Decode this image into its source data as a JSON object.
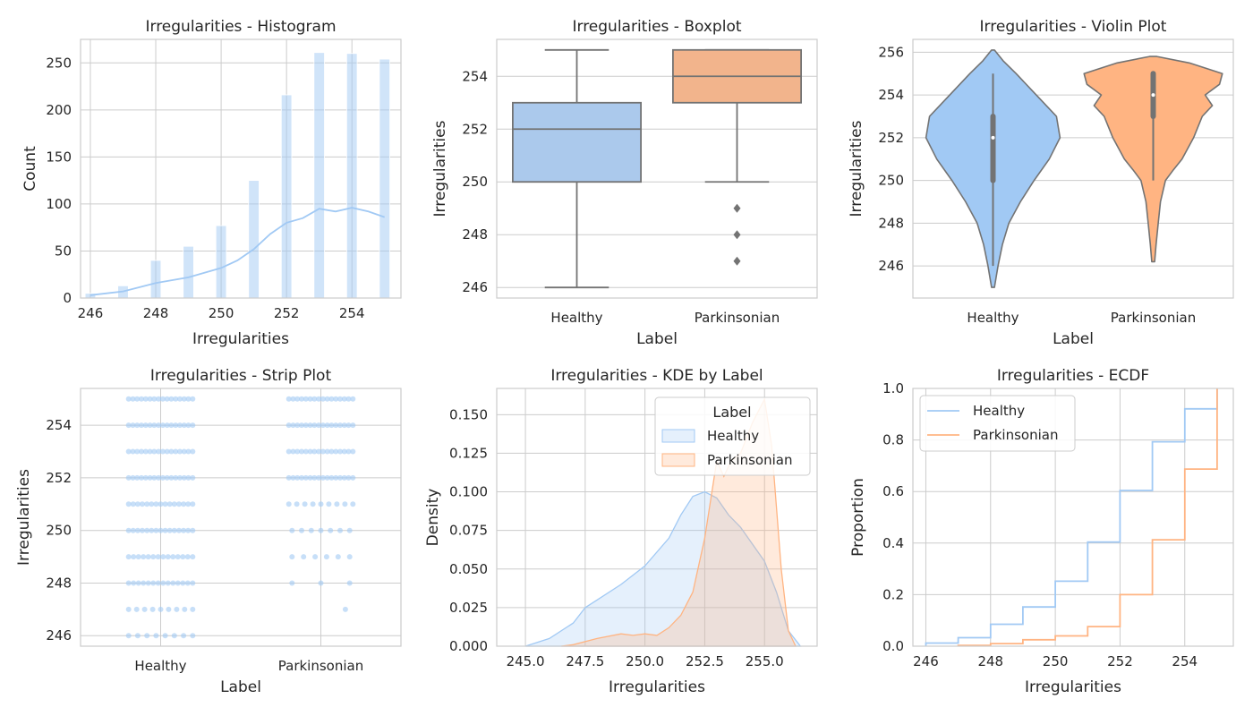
{
  "colors": {
    "healthy": "#a1c9f4",
    "parkinsonian": "#ffb482",
    "healthy_box": "#abc9ec",
    "parkinsonian_box": "#f2b48c",
    "line_gray": "#737373"
  },
  "chart_data": [
    {
      "type": "bar",
      "title": "Irregularities - Histogram",
      "xlabel": "Irregularities",
      "ylabel": "Count",
      "x": [
        246,
        247,
        248,
        249,
        250,
        251,
        252,
        253,
        254,
        255
      ],
      "values": [
        5,
        13,
        40,
        55,
        77,
        125,
        216,
        261,
        260,
        254
      ],
      "kde_x": [
        246,
        247,
        248,
        249,
        250,
        250.5,
        251,
        251.5,
        252,
        252.5,
        253,
        253.5,
        254,
        254.5,
        255
      ],
      "kde_y": [
        3,
        7,
        16,
        22,
        32,
        40,
        52,
        68,
        80,
        85,
        95,
        92,
        96,
        92,
        86
      ],
      "xticks": [
        "246",
        "248",
        "250",
        "252",
        "254"
      ],
      "yticks": [
        "0",
        "50",
        "100",
        "150",
        "200",
        "250"
      ],
      "xlim": [
        245.7,
        255.5
      ],
      "ylim": [
        0,
        275
      ],
      "grid": true
    },
    {
      "type": "box",
      "title": "Irregularities - Boxplot",
      "xlabel": "Label",
      "ylabel": "Irregularities",
      "categories": [
        "Healthy",
        "Parkinsonian"
      ],
      "boxes": [
        {
          "whislo": 246,
          "q1": 250,
          "med": 252,
          "q3": 253,
          "whishi": 255,
          "fliers": []
        },
        {
          "whislo": 250,
          "q1": 253,
          "med": 254,
          "q3": 255,
          "whishi": 255,
          "fliers": [
            249,
            248,
            247
          ]
        }
      ],
      "yticks": [
        "246",
        "248",
        "250",
        "252",
        "254"
      ],
      "ylim": [
        245.6,
        255.4
      ],
      "grid": true
    },
    {
      "type": "violin",
      "title": "Irregularities - Violin Plot",
      "xlabel": "Label",
      "ylabel": "Irregularities",
      "categories": [
        "Healthy",
        "Parkinsonian"
      ],
      "violins": [
        {
          "y": [
            245,
            246,
            247,
            248,
            249,
            250,
            251,
            252,
            253,
            254,
            255,
            255.6,
            256.1
          ],
          "width": [
            0.02,
            0.07,
            0.13,
            0.22,
            0.38,
            0.57,
            0.78,
            0.93,
            0.88,
            0.6,
            0.32,
            0.14,
            0.02
          ],
          "q1": 250,
          "med": 252,
          "q3": 253,
          "whislo": 246,
          "whishi": 255
        },
        {
          "y": [
            246.2,
            247,
            248,
            249,
            250,
            250.5,
            251,
            252,
            253,
            253.5,
            254,
            254.5,
            255,
            255.5,
            255.8
          ],
          "width": [
            0.02,
            0.04,
            0.07,
            0.1,
            0.17,
            0.28,
            0.4,
            0.56,
            0.68,
            0.82,
            0.72,
            0.92,
            0.96,
            0.5,
            0.05
          ],
          "q1": 253,
          "med": 254,
          "q3": 255,
          "whislo": 250,
          "whishi": 255
        }
      ],
      "yticks": [
        "246",
        "248",
        "250",
        "252",
        "254",
        "256"
      ],
      "ylim": [
        244.5,
        256.6
      ],
      "grid": true
    },
    {
      "type": "scatter",
      "title": "Irregularities - Strip Plot",
      "xlabel": "Label",
      "ylabel": "Irregularities",
      "categories": [
        "Healthy",
        "Parkinsonian"
      ],
      "strips": [
        {
          "values": [
            246,
            247,
            248,
            249,
            250,
            251,
            252,
            253,
            254,
            255
          ],
          "counts": [
            8,
            9,
            14,
            14,
            15,
            15,
            16,
            16,
            16,
            16
          ]
        },
        {
          "values": [
            247,
            248,
            249,
            250,
            251,
            252,
            253,
            254,
            255
          ],
          "counts": [
            1,
            3,
            6,
            7,
            9,
            16,
            16,
            16,
            16
          ]
        }
      ],
      "yticks": [
        "246",
        "248",
        "250",
        "252",
        "254"
      ],
      "ylim": [
        245.6,
        255.4
      ],
      "grid": true
    },
    {
      "type": "area",
      "title": "Irregularities - KDE by Label",
      "xlabel": "Irregularities",
      "ylabel": "Density",
      "legend_title": "Label",
      "legend_position": "top-right",
      "series": [
        {
          "name": "Healthy",
          "x": [
            245,
            246,
            247,
            247.5,
            248,
            249,
            250,
            251,
            251.5,
            252,
            252.5,
            253,
            253.5,
            254,
            255,
            255.5,
            256,
            256.5
          ],
          "y": [
            0.0,
            0.005,
            0.015,
            0.025,
            0.03,
            0.04,
            0.052,
            0.07,
            0.085,
            0.097,
            0.1,
            0.096,
            0.085,
            0.077,
            0.055,
            0.035,
            0.01,
            0.0
          ]
        },
        {
          "name": "Parkinsonian",
          "x": [
            246.5,
            247,
            248,
            249,
            249.5,
            250,
            250.5,
            251,
            251.5,
            252,
            252.5,
            253,
            253.3,
            253.6,
            254,
            254.5,
            255,
            255.3,
            255.7,
            256,
            256.3
          ],
          "y": [
            0.0,
            0.001,
            0.005,
            0.008,
            0.007,
            0.008,
            0.007,
            0.012,
            0.02,
            0.035,
            0.07,
            0.12,
            0.11,
            0.12,
            0.125,
            0.145,
            0.16,
            0.13,
            0.05,
            0.01,
            0.0
          ]
        }
      ],
      "xticks": [
        "245.0",
        "247.5",
        "250.0",
        "252.5",
        "255.0"
      ],
      "yticks": [
        "0.000",
        "0.025",
        "0.050",
        "0.075",
        "0.100",
        "0.125",
        "0.150"
      ],
      "xlim": [
        243.8,
        257.2
      ],
      "ylim": [
        0,
        0.167
      ],
      "grid": true
    },
    {
      "type": "line",
      "title": "Irregularities - ECDF",
      "xlabel": "Irregularities",
      "ylabel": "Proportion",
      "legend_position": "top-left",
      "series": [
        {
          "name": "Healthy",
          "x": [
            246,
            247,
            248,
            249,
            250,
            251,
            252,
            253,
            254,
            255
          ],
          "y": [
            0.012,
            0.033,
            0.085,
            0.152,
            0.252,
            0.404,
            0.604,
            0.793,
            0.921,
            1.0
          ]
        },
        {
          "name": "Parkinsonian",
          "x": [
            247,
            248,
            249,
            250,
            251,
            252,
            253,
            254,
            255
          ],
          "y": [
            0.003,
            0.01,
            0.025,
            0.04,
            0.076,
            0.2,
            0.413,
            0.687,
            1.0
          ]
        }
      ],
      "xticks": [
        "246",
        "248",
        "250",
        "252",
        "254"
      ],
      "yticks": [
        "0.0",
        "0.2",
        "0.4",
        "0.6",
        "0.8",
        "1.0"
      ],
      "xlim": [
        245.6,
        255.5
      ],
      "ylim": [
        0,
        1.0
      ],
      "grid": true
    }
  ]
}
